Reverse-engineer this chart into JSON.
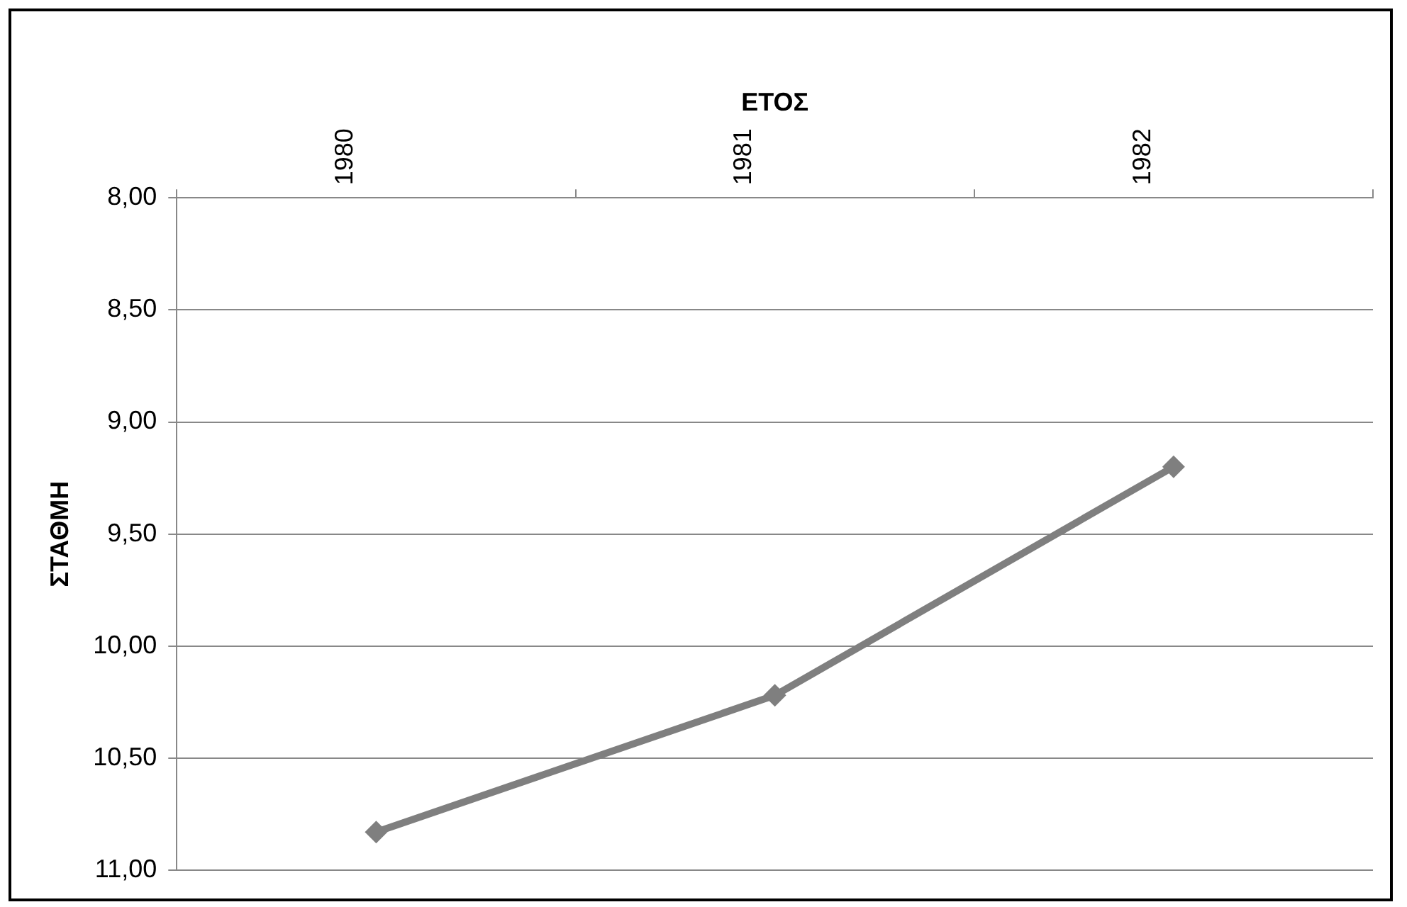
{
  "chart_data": {
    "type": "line",
    "xlabel": "ΕΤΟΣ",
    "ylabel": "ΣΤΑΘΜΗ",
    "categories": [
      "1980",
      "1981",
      "1982"
    ],
    "series": [
      {
        "color": "#7f7f7f",
        "values": [
          10.83,
          10.22,
          9.2
        ]
      }
    ],
    "ylim": [
      11,
      8
    ],
    "yticks": [
      {
        "value": 8,
        "label": "8,00"
      },
      {
        "value": 8.5,
        "label": "8,50"
      },
      {
        "value": 9,
        "label": "9,00"
      },
      {
        "value": 9.5,
        "label": "9,50"
      },
      {
        "value": 10,
        "label": "10,00"
      },
      {
        "value": 10.5,
        "label": "10,50"
      },
      {
        "value": 11,
        "label": "11,00"
      }
    ],
    "grid": "y",
    "legend": false,
    "marker": "diamond",
    "line_style": "solid"
  }
}
